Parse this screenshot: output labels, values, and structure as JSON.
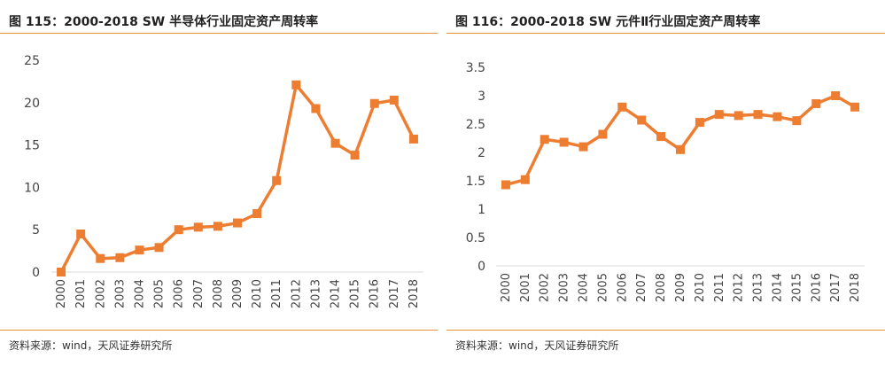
{
  "charts": [
    {
      "caption": "图 115：2000-2018 SW 半导体行业固定资产周转率",
      "source": "资料来源：wind，天风证券研究所",
      "chart_data": {
        "type": "line",
        "categories": [
          "2000",
          "2001",
          "2002",
          "2003",
          "2004",
          "2005",
          "2006",
          "2007",
          "2008",
          "2009",
          "2010",
          "2011",
          "2012",
          "2013",
          "2014",
          "2015",
          "2016",
          "2017",
          "2018"
        ],
        "series": [
          {
            "values": [
              0.0,
              4.5,
              1.6,
              1.7,
              2.6,
              2.9,
              5.0,
              5.3,
              5.4,
              5.8,
              6.9,
              10.8,
              22.1,
              19.3,
              15.2,
              13.8,
              19.9,
              20.3,
              15.7
            ]
          }
        ],
        "yticks": [
          "0",
          "5",
          "10",
          "15",
          "20",
          "25"
        ],
        "ylim": [
          0,
          25
        ],
        "grid": false,
        "color": "#ed7d31"
      }
    },
    {
      "caption": "图 116：2000-2018 SW 元件Ⅱ行业固定资产周转率",
      "source": "资料来源：wind，天风证券研究所",
      "chart_data": {
        "type": "line",
        "categories": [
          "2000",
          "2001",
          "2002",
          "2003",
          "2004",
          "2005",
          "2006",
          "2007",
          "2008",
          "2009",
          "2010",
          "2011",
          "2012",
          "2013",
          "2014",
          "2015",
          "2016",
          "2017",
          "2018"
        ],
        "series": [
          {
            "values": [
              1.43,
              1.52,
              2.23,
              2.18,
              2.1,
              2.32,
              2.8,
              2.57,
              2.28,
              2.05,
              2.53,
              2.67,
              2.65,
              2.67,
              2.63,
              2.56,
              2.86,
              3.0,
              2.8
            ]
          }
        ],
        "yticks": [
          "0",
          "0.5",
          "1",
          "1.5",
          "2",
          "2.5",
          "3",
          "3.5"
        ],
        "ylim": [
          0,
          3.5
        ],
        "grid": false,
        "color": "#ed7d31"
      }
    }
  ]
}
